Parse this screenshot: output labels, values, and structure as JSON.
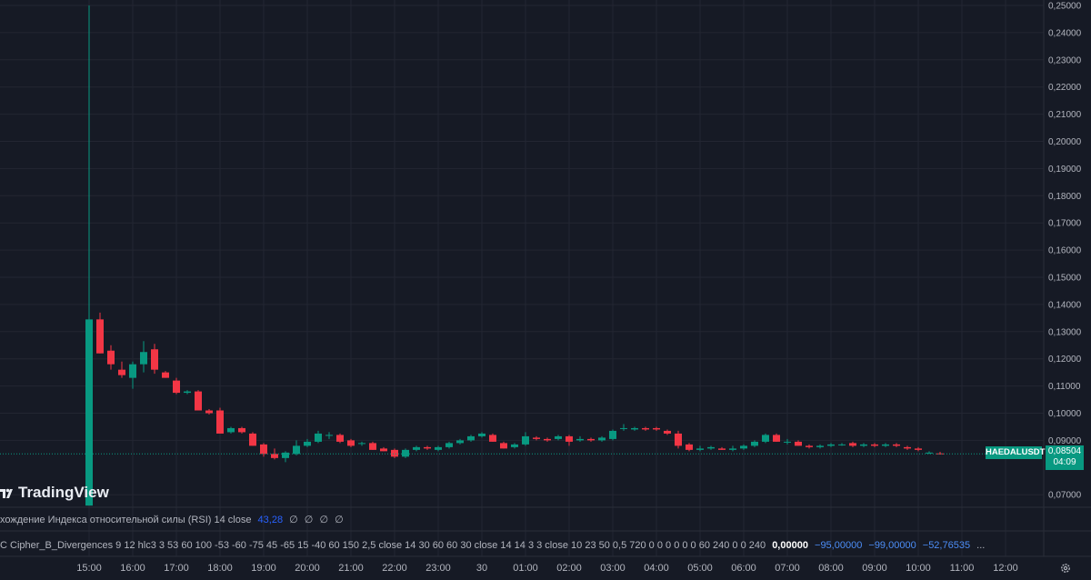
{
  "symbol": {
    "ticker": "HAEDALUSDT",
    "last_price": "0,08504",
    "countdown": "04:09"
  },
  "branding": {
    "logo_text": "TradingView"
  },
  "indicators": {
    "rsi": {
      "label": "хождение Индекса относительной силы (RSI) 14 close",
      "value": "43,28",
      "extras": [
        "∅",
        "∅",
        "∅",
        "∅"
      ]
    },
    "cipher": {
      "label": "C Cipher_B_Divergences 9 12 hlc3 3 53 60 100 -53 -60 -75 45 -65 15 -40 60 150 2,5 close 14 30 60 60 30 close 14 14 3 3 close 10 23 50 0,5 720 0 0 0 0 0 0 60 240 0 0 240",
      "values": [
        "0,00000",
        "−95,00000",
        "−99,00000",
        "−52,76535"
      ],
      "overflow": "..."
    }
  },
  "colors": {
    "up": "#089981",
    "down": "#f23645",
    "background": "#161a25",
    "grid": "#232632",
    "accent_blue": "#2962ff"
  },
  "chart_data": {
    "type": "candlestick",
    "y_axis_labels": [
      "0,25000",
      "0,24000",
      "0,23000",
      "0,22000",
      "0,21000",
      "0,20000",
      "0,19000",
      "0,18000",
      "0,17000",
      "0,16000",
      "0,15000",
      "0,14000",
      "0,13000",
      "0,12000",
      "0,11000",
      "0,10000",
      "0,09000",
      "0,07000"
    ],
    "y_axis_values": [
      0.25,
      0.24,
      0.23,
      0.22,
      0.21,
      0.2,
      0.19,
      0.18,
      0.17,
      0.16,
      0.15,
      0.14,
      0.13,
      0.12,
      0.11,
      0.1,
      0.09,
      0.07
    ],
    "x_axis_labels": [
      "15:00",
      "16:00",
      "17:00",
      "18:00",
      "19:00",
      "20:00",
      "21:00",
      "22:00",
      "23:00",
      "30",
      "01:00",
      "02:00",
      "03:00",
      "04:00",
      "05:00",
      "06:00",
      "07:00",
      "08:00",
      "09:00",
      "10:00",
      "11:00",
      "12:00"
    ],
    "candle_interval_minutes": 15,
    "first_candle_time": "15:00",
    "last_price": 0.08504,
    "candles": [
      {
        "o": 0.066,
        "h": 0.25,
        "l": 0.066,
        "c": 0.1345
      },
      {
        "o": 0.1345,
        "h": 0.137,
        "l": 0.122,
        "c": 0.122
      },
      {
        "o": 0.123,
        "h": 0.125,
        "l": 0.116,
        "c": 0.118
      },
      {
        "o": 0.116,
        "h": 0.119,
        "l": 0.113,
        "c": 0.114
      },
      {
        "o": 0.113,
        "h": 0.119,
        "l": 0.109,
        "c": 0.118
      },
      {
        "o": 0.118,
        "h": 0.1265,
        "l": 0.115,
        "c": 0.1225
      },
      {
        "o": 0.1235,
        "h": 0.1255,
        "l": 0.1145,
        "c": 0.116
      },
      {
        "o": 0.115,
        "h": 0.1155,
        "l": 0.113,
        "c": 0.113
      },
      {
        "o": 0.112,
        "h": 0.113,
        "l": 0.107,
        "c": 0.1075
      },
      {
        "o": 0.1075,
        "h": 0.1085,
        "l": 0.107,
        "c": 0.108
      },
      {
        "o": 0.108,
        "h": 0.1085,
        "l": 0.101,
        "c": 0.101
      },
      {
        "o": 0.101,
        "h": 0.1015,
        "l": 0.0995,
        "c": 0.1
      },
      {
        "o": 0.101,
        "h": 0.102,
        "l": 0.0925,
        "c": 0.0925
      },
      {
        "o": 0.093,
        "h": 0.095,
        "l": 0.0925,
        "c": 0.0945
      },
      {
        "o": 0.0945,
        "h": 0.095,
        "l": 0.0925,
        "c": 0.093
      },
      {
        "o": 0.0925,
        "h": 0.093,
        "l": 0.088,
        "c": 0.088
      },
      {
        "o": 0.0885,
        "h": 0.089,
        "l": 0.084,
        "c": 0.085
      },
      {
        "o": 0.085,
        "h": 0.087,
        "l": 0.083,
        "c": 0.0835
      },
      {
        "o": 0.0835,
        "h": 0.086,
        "l": 0.082,
        "c": 0.0855
      },
      {
        "o": 0.085,
        "h": 0.09,
        "l": 0.0845,
        "c": 0.088
      },
      {
        "o": 0.088,
        "h": 0.0905,
        "l": 0.0875,
        "c": 0.0895
      },
      {
        "o": 0.0895,
        "h": 0.0935,
        "l": 0.089,
        "c": 0.0925
      },
      {
        "o": 0.092,
        "h": 0.093,
        "l": 0.0905,
        "c": 0.092
      },
      {
        "o": 0.092,
        "h": 0.0925,
        "l": 0.089,
        "c": 0.0895
      },
      {
        "o": 0.09,
        "h": 0.0905,
        "l": 0.0875,
        "c": 0.088
      },
      {
        "o": 0.089,
        "h": 0.0895,
        "l": 0.088,
        "c": 0.089
      },
      {
        "o": 0.089,
        "h": 0.0895,
        "l": 0.0865,
        "c": 0.0865
      },
      {
        "o": 0.087,
        "h": 0.0875,
        "l": 0.086,
        "c": 0.086
      },
      {
        "o": 0.0865,
        "h": 0.087,
        "l": 0.0835,
        "c": 0.084
      },
      {
        "o": 0.084,
        "h": 0.087,
        "l": 0.0835,
        "c": 0.0865
      },
      {
        "o": 0.0865,
        "h": 0.088,
        "l": 0.086,
        "c": 0.0875
      },
      {
        "o": 0.0875,
        "h": 0.088,
        "l": 0.0865,
        "c": 0.087
      },
      {
        "o": 0.0865,
        "h": 0.088,
        "l": 0.086,
        "c": 0.0875
      },
      {
        "o": 0.0875,
        "h": 0.0895,
        "l": 0.087,
        "c": 0.089
      },
      {
        "o": 0.089,
        "h": 0.0905,
        "l": 0.0885,
        "c": 0.09
      },
      {
        "o": 0.09,
        "h": 0.092,
        "l": 0.0895,
        "c": 0.0915
      },
      {
        "o": 0.0915,
        "h": 0.093,
        "l": 0.091,
        "c": 0.0925
      },
      {
        "o": 0.092,
        "h": 0.0925,
        "l": 0.0895,
        "c": 0.0895
      },
      {
        "o": 0.089,
        "h": 0.0895,
        "l": 0.087,
        "c": 0.087
      },
      {
        "o": 0.0875,
        "h": 0.089,
        "l": 0.087,
        "c": 0.0885
      },
      {
        "o": 0.0885,
        "h": 0.093,
        "l": 0.088,
        "c": 0.0915
      },
      {
        "o": 0.091,
        "h": 0.0915,
        "l": 0.09,
        "c": 0.0905
      },
      {
        "o": 0.0905,
        "h": 0.091,
        "l": 0.0895,
        "c": 0.09
      },
      {
        "o": 0.0905,
        "h": 0.092,
        "l": 0.09,
        "c": 0.0915
      },
      {
        "o": 0.0915,
        "h": 0.092,
        "l": 0.088,
        "c": 0.0895
      },
      {
        "o": 0.09,
        "h": 0.0915,
        "l": 0.0895,
        "c": 0.0905
      },
      {
        "o": 0.0905,
        "h": 0.091,
        "l": 0.0895,
        "c": 0.09
      },
      {
        "o": 0.09,
        "h": 0.0915,
        "l": 0.0895,
        "c": 0.091
      },
      {
        "o": 0.0905,
        "h": 0.094,
        "l": 0.09,
        "c": 0.0935
      },
      {
        "o": 0.0945,
        "h": 0.096,
        "l": 0.0935,
        "c": 0.0945
      },
      {
        "o": 0.094,
        "h": 0.095,
        "l": 0.0935,
        "c": 0.0945
      },
      {
        "o": 0.0945,
        "h": 0.095,
        "l": 0.0935,
        "c": 0.094
      },
      {
        "o": 0.0945,
        "h": 0.095,
        "l": 0.0935,
        "c": 0.094
      },
      {
        "o": 0.0935,
        "h": 0.094,
        "l": 0.092,
        "c": 0.0925
      },
      {
        "o": 0.0925,
        "h": 0.0935,
        "l": 0.087,
        "c": 0.088
      },
      {
        "o": 0.0885,
        "h": 0.089,
        "l": 0.086,
        "c": 0.0865
      },
      {
        "o": 0.0865,
        "h": 0.088,
        "l": 0.086,
        "c": 0.087
      },
      {
        "o": 0.087,
        "h": 0.088,
        "l": 0.0865,
        "c": 0.0875
      },
      {
        "o": 0.087,
        "h": 0.0875,
        "l": 0.0865,
        "c": 0.0865
      },
      {
        "o": 0.0865,
        "h": 0.088,
        "l": 0.086,
        "c": 0.087
      },
      {
        "o": 0.087,
        "h": 0.0885,
        "l": 0.0865,
        "c": 0.088
      },
      {
        "o": 0.088,
        "h": 0.09,
        "l": 0.0875,
        "c": 0.0895
      },
      {
        "o": 0.0895,
        "h": 0.0925,
        "l": 0.089,
        "c": 0.092
      },
      {
        "o": 0.092,
        "h": 0.0925,
        "l": 0.0895,
        "c": 0.0895
      },
      {
        "o": 0.0895,
        "h": 0.0905,
        "l": 0.0885,
        "c": 0.0895
      },
      {
        "o": 0.0895,
        "h": 0.09,
        "l": 0.088,
        "c": 0.088
      },
      {
        "o": 0.088,
        "h": 0.0885,
        "l": 0.087,
        "c": 0.0875
      },
      {
        "o": 0.0875,
        "h": 0.0885,
        "l": 0.087,
        "c": 0.088
      },
      {
        "o": 0.088,
        "h": 0.089,
        "l": 0.0875,
        "c": 0.0885
      },
      {
        "o": 0.0885,
        "h": 0.089,
        "l": 0.088,
        "c": 0.0885
      },
      {
        "o": 0.089,
        "h": 0.0895,
        "l": 0.0875,
        "c": 0.088
      },
      {
        "o": 0.088,
        "h": 0.089,
        "l": 0.0875,
        "c": 0.0885
      },
      {
        "o": 0.0885,
        "h": 0.089,
        "l": 0.0875,
        "c": 0.088
      },
      {
        "o": 0.088,
        "h": 0.089,
        "l": 0.0875,
        "c": 0.0885
      },
      {
        "o": 0.0885,
        "h": 0.089,
        "l": 0.0875,
        "c": 0.088
      },
      {
        "o": 0.0875,
        "h": 0.088,
        "l": 0.0865,
        "c": 0.087
      },
      {
        "o": 0.087,
        "h": 0.0875,
        "l": 0.086,
        "c": 0.0865
      },
      {
        "o": 0.0855,
        "h": 0.086,
        "l": 0.085,
        "c": 0.0855
      },
      {
        "o": 0.0852,
        "h": 0.0858,
        "l": 0.0848,
        "c": 0.085
      }
    ]
  }
}
